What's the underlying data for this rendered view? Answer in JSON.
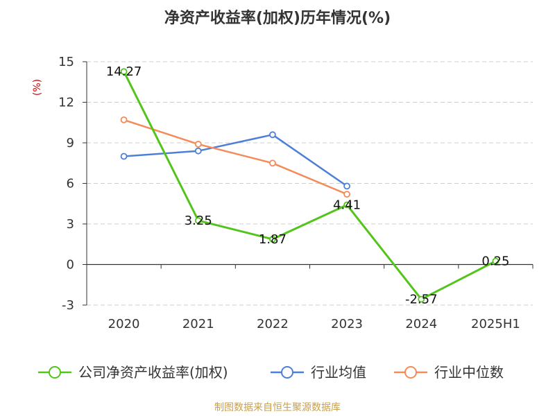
{
  "chart_data": {
    "type": "line",
    "title": "净资产收益率(加权)历年情况(%)",
    "ylabel": "(%)",
    "categories": [
      "2020",
      "2021",
      "2022",
      "2023",
      "2024",
      "2025H1"
    ],
    "ylim": [
      -3,
      15
    ],
    "yticks": [
      15,
      12,
      9,
      6,
      3,
      0,
      -3
    ],
    "grid": true,
    "legend_position": "bottom",
    "series": [
      {
        "name": "公司净资产收益率(加权)",
        "color": "#52c41a",
        "values": [
          14.27,
          3.25,
          1.87,
          4.41,
          -2.57,
          0.25
        ],
        "labels": [
          "14.27",
          "3.25",
          "1.87",
          "4.41",
          "-2.57",
          "0.25"
        ]
      },
      {
        "name": "行业均值",
        "color": "#4e7fd6",
        "values": [
          8.0,
          8.4,
          9.6,
          5.8,
          null,
          null
        ]
      },
      {
        "name": "行业中位数",
        "color": "#f38b5a",
        "values": [
          10.7,
          8.9,
          7.5,
          5.2,
          null,
          null
        ]
      }
    ]
  },
  "footer": {
    "source": "制图数据来自恒生聚源数据库"
  }
}
